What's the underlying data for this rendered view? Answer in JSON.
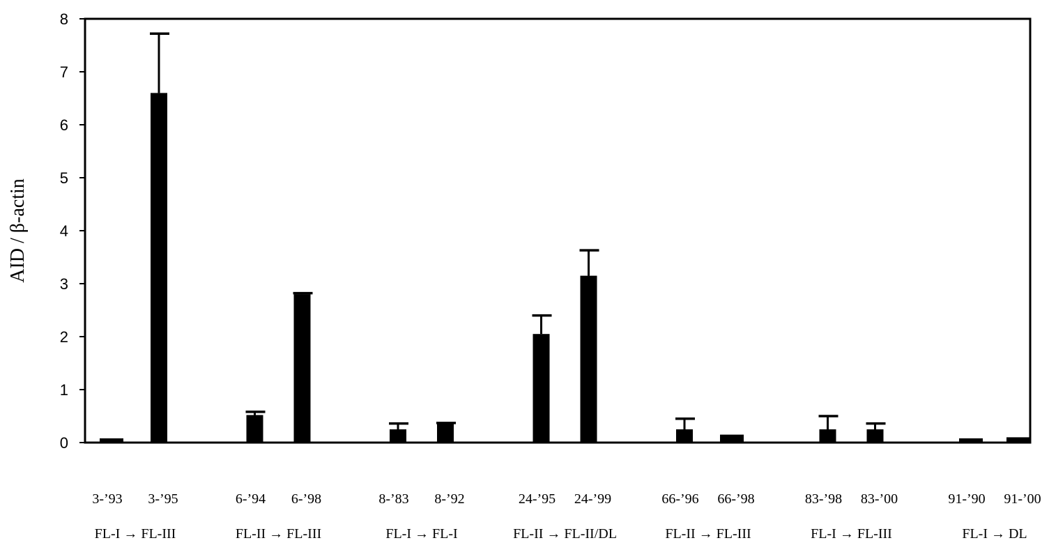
{
  "chart_data": {
    "type": "bar",
    "ylabel": "AID / β-actin",
    "ylim": [
      0,
      8
    ],
    "yticks": [
      0,
      1,
      2,
      3,
      4,
      5,
      6,
      7,
      8
    ],
    "grid": false,
    "legend": "none",
    "bar_color": "#000000",
    "categories": [
      "3-’93",
      "3-’95",
      "6-’94",
      "6-’98",
      "8-’83",
      "8-’92",
      "24-’95",
      "24-’99",
      "66-’96",
      "66-’98",
      "83-’98",
      "83-’00",
      "91-’90",
      "91-’00"
    ],
    "values": [
      0.08,
      6.6,
      0.52,
      2.8,
      0.25,
      0.35,
      2.05,
      3.15,
      0.25,
      0.15,
      0.25,
      0.25,
      0.08,
      0.1
    ],
    "error_upper": [
      null,
      7.72,
      0.58,
      2.82,
      0.36,
      0.37,
      2.4,
      3.63,
      0.45,
      null,
      0.5,
      0.36,
      null,
      null
    ],
    "groups": [
      {
        "label": "FL-I → FL-III",
        "categories": [
          "3-’93",
          "3-’95"
        ]
      },
      {
        "label": "FL-II → FL-III",
        "categories": [
          "6-’94",
          "6-’98"
        ]
      },
      {
        "label": "FL-I → FL-I",
        "categories": [
          "8-’83",
          "8-’92"
        ]
      },
      {
        "label": "FL-II → FL-II/DL",
        "categories": [
          "24-’95",
          "24-’99"
        ]
      },
      {
        "label": "FL-II → FL-III",
        "categories": [
          "66-’96",
          "66-’98"
        ]
      },
      {
        "label": "FL-I → FL-III",
        "categories": [
          "83-’98",
          "83-’00"
        ]
      },
      {
        "label": "FL-I → DL",
        "categories": [
          "91-’90",
          "91-’00"
        ]
      }
    ]
  }
}
